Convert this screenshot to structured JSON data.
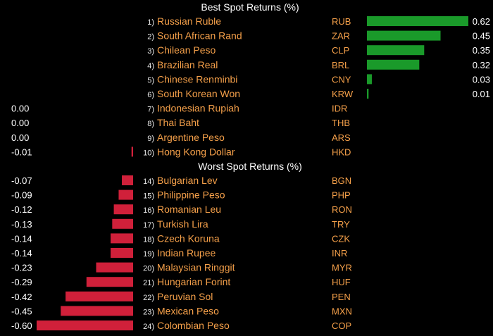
{
  "colors": {
    "background": "#000000",
    "positive": "#1a9a2a",
    "negative": "#d0203a",
    "label": "#f5a04a",
    "text": "#ffffff"
  },
  "chart_data": {
    "type": "bar",
    "orientation": "horizontal",
    "sections": [
      {
        "title": "Best Spot Returns (%)",
        "rows": [
          {
            "rank": "1)",
            "name": "Russian Ruble",
            "code": "RUB",
            "value": 0.62
          },
          {
            "rank": "2)",
            "name": "South African Rand",
            "code": "ZAR",
            "value": 0.45
          },
          {
            "rank": "3)",
            "name": "Chilean Peso",
            "code": "CLP",
            "value": 0.35
          },
          {
            "rank": "4)",
            "name": "Brazilian Real",
            "code": "BRL",
            "value": 0.32
          },
          {
            "rank": "5)",
            "name": "Chinese Renminbi",
            "code": "CNY",
            "value": 0.03
          },
          {
            "rank": "6)",
            "name": "South Korean Won",
            "code": "KRW",
            "value": 0.01
          },
          {
            "rank": "7)",
            "name": "Indonesian Rupiah",
            "code": "IDR",
            "value": 0.0
          },
          {
            "rank": "8)",
            "name": "Thai Baht",
            "code": "THB",
            "value": 0.0
          },
          {
            "rank": "9)",
            "name": "Argentine Peso",
            "code": "ARS",
            "value": 0.0
          },
          {
            "rank": "10)",
            "name": "Hong Kong Dollar",
            "code": "HKD",
            "value": -0.01
          }
        ]
      },
      {
        "title": "Worst Spot Returns (%)",
        "rows": [
          {
            "rank": "14)",
            "name": "Bulgarian Lev",
            "code": "BGN",
            "value": -0.07
          },
          {
            "rank": "15)",
            "name": "Philippine Peso",
            "code": "PHP",
            "value": -0.09
          },
          {
            "rank": "16)",
            "name": "Romanian Leu",
            "code": "RON",
            "value": -0.12
          },
          {
            "rank": "17)",
            "name": "Turkish Lira",
            "code": "TRY",
            "value": -0.13
          },
          {
            "rank": "18)",
            "name": "Czech Koruna",
            "code": "CZK",
            "value": -0.14
          },
          {
            "rank": "19)",
            "name": "Indian Rupee",
            "code": "INR",
            "value": -0.14
          },
          {
            "rank": "20)",
            "name": "Malaysian Ringgit",
            "code": "MYR",
            "value": -0.23
          },
          {
            "rank": "21)",
            "name": "Hungarian Forint",
            "code": "HUF",
            "value": -0.29
          },
          {
            "rank": "22)",
            "name": "Peruvian Sol",
            "code": "PEN",
            "value": -0.42
          },
          {
            "rank": "23)",
            "name": "Mexican Peso",
            "code": "MXN",
            "value": -0.45
          },
          {
            "rank": "24)",
            "name": "Colombian Peso",
            "code": "COP",
            "value": -0.6
          }
        ]
      }
    ]
  }
}
